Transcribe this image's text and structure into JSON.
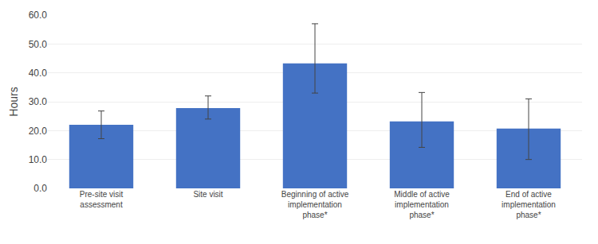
{
  "chart_data": {
    "type": "bar",
    "categories": [
      "Pre-site visit\nassessment",
      "Site visit",
      "Beginning of active\nimplementation\nphase*",
      "Middle of active\nimplementation\nphase*",
      "End of active\nimplementation\nphase*"
    ],
    "values": [
      22.0,
      27.8,
      43.3,
      23.2,
      20.7
    ],
    "error_lower": [
      4.8,
      3.8,
      10.3,
      9.0,
      10.7
    ],
    "error_upper": [
      4.8,
      4.2,
      13.7,
      10.0,
      10.3
    ],
    "color": "#4472C4",
    "ylabel": "Hours",
    "ylim": [
      0,
      60
    ],
    "yticks": [
      {
        "value": 0,
        "label": "0.0"
      },
      {
        "value": 10,
        "label": "10.0"
      },
      {
        "value": 20,
        "label": "20.0"
      },
      {
        "value": 30,
        "label": "30.0"
      },
      {
        "value": 40,
        "label": "40.0"
      },
      {
        "value": 50,
        "label": "50.0"
      },
      {
        "value": 60,
        "label": "60.0"
      }
    ],
    "grid": true
  }
}
